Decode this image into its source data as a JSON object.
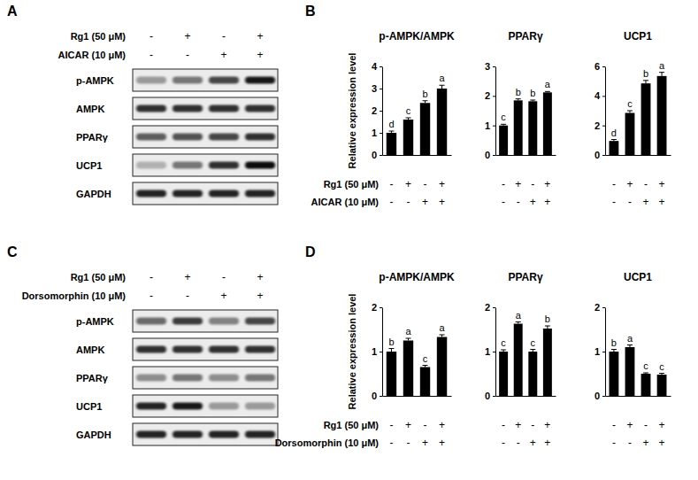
{
  "chart_data": [
    {
      "type": "bar",
      "title": "p-AMPK/AMPK",
      "y_label": "Relative expression level",
      "categories": [
        null,
        null,
        null,
        null
      ],
      "values": [
        1.0,
        1.6,
        2.35,
        3.0
      ],
      "errors": [
        0.08,
        0.08,
        0.1,
        0.15
      ],
      "annotations": [
        "d",
        "c",
        "b",
        "a"
      ],
      "color": "#000000",
      "ylim": [
        0,
        4
      ],
      "yticks": [
        0,
        1,
        2,
        3,
        4
      ]
    },
    {
      "type": "bar",
      "title": "PPARγ",
      "categories": [
        null,
        null,
        null,
        null
      ],
      "values": [
        1.0,
        1.85,
        1.82,
        2.12
      ],
      "errors": [
        0.04,
        0.05,
        0.04,
        0.03
      ],
      "annotations": [
        "c",
        "b",
        "b",
        "a"
      ],
      "color": "#000000",
      "ylim": [
        0,
        3
      ],
      "yticks": [
        0,
        1,
        2,
        3
      ]
    },
    {
      "type": "bar",
      "title": "UCP1",
      "categories": [
        null,
        null,
        null,
        null
      ],
      "values": [
        0.95,
        2.85,
        4.85,
        5.35
      ],
      "errors": [
        0.1,
        0.15,
        0.2,
        0.25
      ],
      "annotations": [
        "d",
        "c",
        "b",
        "a"
      ],
      "color": "#000000",
      "ylim": [
        0,
        6
      ],
      "yticks": [
        0,
        2,
        4,
        6
      ]
    },
    {
      "type": "bar",
      "title": "p-AMPK/AMPK",
      "y_label": "Relative expression level",
      "categories": [
        null,
        null,
        null,
        null
      ],
      "values": [
        1.0,
        1.25,
        0.65,
        1.33
      ],
      "errors": [
        0.07,
        0.05,
        0.04,
        0.05
      ],
      "annotations": [
        "b",
        "a",
        "c",
        "a"
      ],
      "color": "#000000",
      "ylim": [
        0,
        2
      ],
      "yticks": [
        0,
        1,
        2
      ]
    },
    {
      "type": "bar",
      "title": "PPARγ",
      "categories": [
        null,
        null,
        null,
        null
      ],
      "values": [
        1.0,
        1.63,
        1.0,
        1.52
      ],
      "errors": [
        0.04,
        0.04,
        0.05,
        0.06
      ],
      "annotations": [
        "c",
        "a",
        "c",
        "b"
      ],
      "color": "#000000",
      "ylim": [
        0,
        2
      ],
      "yticks": [
        0,
        1,
        2
      ]
    },
    {
      "type": "bar",
      "title": "UCP1",
      "categories": [
        null,
        null,
        null,
        null
      ],
      "values": [
        1.0,
        1.1,
        0.5,
        0.48
      ],
      "errors": [
        0.05,
        0.05,
        0.02,
        0.03
      ],
      "annotations": [
        "b",
        "a",
        "c",
        "c"
      ],
      "color": "#000000",
      "ylim": [
        0,
        2
      ],
      "yticks": [
        0,
        1,
        2
      ]
    }
  ],
  "bar_panels": [
    {
      "letter": "B",
      "treatments": [
        {
          "label": "Rg1 (50 μM)",
          "signs": [
            "-",
            "+",
            "-",
            "+"
          ]
        },
        {
          "label": "AICAR (10 μM)",
          "signs": [
            "-",
            "-",
            "+",
            "+"
          ]
        }
      ]
    },
    {
      "letter": "D",
      "treatments": [
        {
          "label": "Rg1 (50 μM)",
          "signs": [
            "-",
            "+",
            "-",
            "+"
          ]
        },
        {
          "label": "Dorsomorphin (10 μM)",
          "signs": [
            "-",
            "-",
            "+",
            "+"
          ]
        }
      ]
    }
  ],
  "blots": [
    {
      "letter": "A",
      "treatments": [
        {
          "label": "Rg1 (50 μM)",
          "signs": [
            "-",
            "+",
            "-",
            "+"
          ]
        },
        {
          "label": "AICAR (10 μM)",
          "signs": [
            "-",
            "-",
            "+",
            "+"
          ]
        }
      ],
      "bands": [
        {
          "label": "p-AMPK",
          "intensity": [
            0.35,
            0.5,
            0.7,
            0.9
          ]
        },
        {
          "label": "AMPK",
          "intensity": [
            0.8,
            0.8,
            0.8,
            0.8
          ]
        },
        {
          "label": "PPARγ",
          "intensity": [
            0.6,
            0.65,
            0.7,
            0.8
          ]
        },
        {
          "label": "UCP1",
          "intensity": [
            0.25,
            0.5,
            0.8,
            0.95
          ]
        },
        {
          "label": "GAPDH",
          "intensity": [
            0.85,
            0.85,
            0.85,
            0.85
          ]
        }
      ]
    },
    {
      "letter": "C",
      "treatments": [
        {
          "label": "Rg1 (50 μM)",
          "signs": [
            "-",
            "+",
            "-",
            "+"
          ]
        },
        {
          "label": "Dorsomorphin (10 μM)",
          "signs": [
            "-",
            "-",
            "+",
            "+"
          ]
        }
      ],
      "bands": [
        {
          "label": "p-AMPK",
          "intensity": [
            0.55,
            0.75,
            0.45,
            0.7
          ]
        },
        {
          "label": "AMPK",
          "intensity": [
            0.8,
            0.8,
            0.8,
            0.8
          ]
        },
        {
          "label": "PPARγ",
          "intensity": [
            0.4,
            0.5,
            0.4,
            0.5
          ]
        },
        {
          "label": "UCP1",
          "intensity": [
            0.85,
            0.9,
            0.35,
            0.35
          ]
        },
        {
          "label": "GAPDH",
          "intensity": [
            0.85,
            0.85,
            0.85,
            0.85
          ]
        }
      ]
    }
  ]
}
